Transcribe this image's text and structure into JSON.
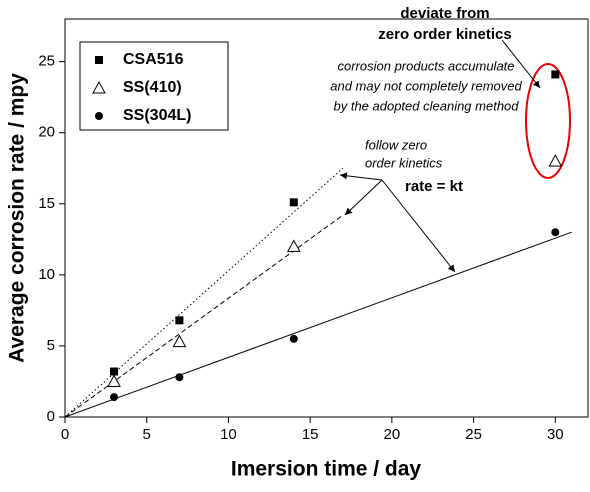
{
  "chart_data": {
    "type": "scatter",
    "x_label": "Imersion time / day",
    "y_label": "Average corrosion rate / mpy",
    "xlim": [
      0,
      32
    ],
    "ylim": [
      0,
      28
    ],
    "xticks": [
      0,
      5,
      10,
      15,
      20,
      25,
      30
    ],
    "yticks": [
      0,
      5,
      10,
      15,
      20,
      25
    ],
    "x": [
      3,
      7,
      14,
      30
    ],
    "series": [
      {
        "name": "CSA516",
        "marker": "square",
        "color": "#000000",
        "values": [
          3.2,
          6.8,
          15.1,
          24.1
        ]
      },
      {
        "name": "SS(410)",
        "marker": "triangle",
        "color": "#000000",
        "values": [
          2.5,
          5.3,
          12.0,
          18.0
        ]
      },
      {
        "name": "SS(304L)",
        "marker": "circle",
        "color": "#000000",
        "values": [
          1.4,
          2.8,
          5.5,
          13.0
        ]
      }
    ],
    "fits": [
      {
        "style": "dotted",
        "x": [
          0,
          17
        ],
        "values": [
          0,
          17.5
        ]
      },
      {
        "style": "dashed",
        "x": [
          0,
          17
        ],
        "values": [
          0,
          14.2
        ]
      },
      {
        "style": "solid",
        "x": [
          0,
          31
        ],
        "values": [
          0,
          13.0
        ]
      }
    ],
    "annotations": [
      {
        "text": "deviate from",
        "bold": true
      },
      {
        "text": "zero order kinetics",
        "bold": true
      },
      {
        "text": "corrosion products accumulate",
        "bold": false
      },
      {
        "text": "and may not completely removed",
        "bold": false
      },
      {
        "text": "by the adopted cleaning method",
        "bold": false
      },
      {
        "text": "follow zero",
        "bold": false
      },
      {
        "text": "order kinetics",
        "bold": false
      },
      {
        "text": "rate = kt",
        "bold": true
      }
    ]
  }
}
